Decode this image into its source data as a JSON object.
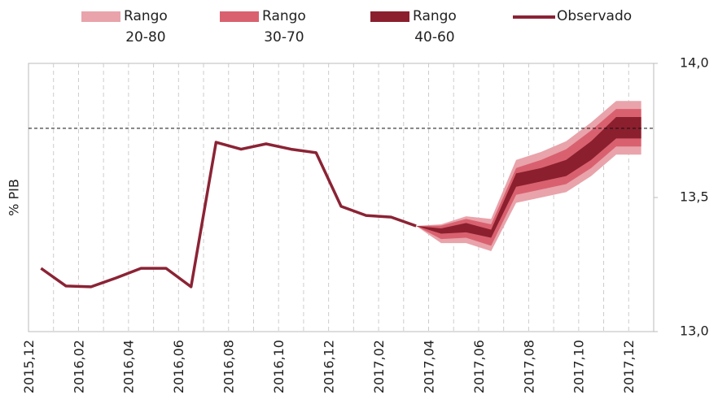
{
  "chart_data": {
    "type": "fan",
    "y_label": "% PIB",
    "categories": [
      "2015,12",
      null,
      "2016,02",
      null,
      "2016,04",
      null,
      "2016,06",
      null,
      "2016,08",
      null,
      "2016,10",
      null,
      "2016,12",
      null,
      "2017,02",
      null,
      "2017,04",
      null,
      "2017,06",
      null,
      "2017,08",
      null,
      "2017,10",
      null,
      "2017,12"
    ],
    "ylim": [
      13.0,
      14.0
    ],
    "yticks": [
      {
        "value": 13.0,
        "label": "13,0"
      },
      {
        "value": 13.5,
        "label": "13,5"
      },
      {
        "value": 14.0,
        "label": "14,0"
      }
    ],
    "y_axis_side": "right",
    "reference_line": 13.758,
    "bands": [
      {
        "name": "Rango\n20-80",
        "color": "#e9a3ab",
        "lower": [
          null,
          null,
          null,
          null,
          null,
          null,
          null,
          null,
          null,
          null,
          null,
          null,
          null,
          null,
          null,
          13.394,
          13.33,
          13.33,
          13.3,
          13.48,
          13.5,
          13.52,
          13.58,
          13.66,
          13.66
        ],
        "upper": [
          null,
          null,
          null,
          null,
          null,
          null,
          null,
          null,
          null,
          null,
          null,
          null,
          null,
          null,
          null,
          13.394,
          13.4,
          13.43,
          13.42,
          13.64,
          13.67,
          13.71,
          13.78,
          13.86,
          13.86
        ]
      },
      {
        "name": "Rango\n30-70",
        "color": "#d9616f",
        "lower": [
          null,
          null,
          null,
          null,
          null,
          null,
          null,
          null,
          null,
          null,
          null,
          null,
          null,
          null,
          null,
          13.394,
          13.345,
          13.35,
          13.32,
          13.51,
          13.53,
          13.55,
          13.61,
          13.69,
          13.69
        ],
        "upper": [
          null,
          null,
          null,
          null,
          null,
          null,
          null,
          null,
          null,
          null,
          null,
          null,
          null,
          null,
          null,
          13.394,
          13.395,
          13.42,
          13.4,
          13.61,
          13.64,
          13.68,
          13.75,
          13.83,
          13.83
        ]
      },
      {
        "name": "Rango\n40-60",
        "color": "#8b1f2e",
        "lower": [
          null,
          null,
          null,
          null,
          null,
          null,
          null,
          null,
          null,
          null,
          null,
          null,
          null,
          null,
          null,
          13.394,
          13.365,
          13.37,
          13.35,
          13.54,
          13.56,
          13.58,
          13.64,
          13.72,
          13.72
        ],
        "upper": [
          null,
          null,
          null,
          null,
          null,
          null,
          null,
          null,
          null,
          null,
          null,
          null,
          null,
          null,
          null,
          13.394,
          13.385,
          13.405,
          13.38,
          13.59,
          13.61,
          13.64,
          13.71,
          13.8,
          13.8
        ]
      }
    ],
    "series": [
      {
        "name": "Observado",
        "color": "#8b2335",
        "values": [
          13.236,
          13.17,
          13.167,
          13.2,
          13.236,
          13.236,
          13.167,
          13.706,
          13.68,
          13.7,
          13.68,
          13.667,
          13.467,
          13.433,
          13.427,
          13.394,
          null,
          null,
          null,
          null,
          null,
          null,
          null,
          null,
          null
        ]
      }
    ]
  }
}
